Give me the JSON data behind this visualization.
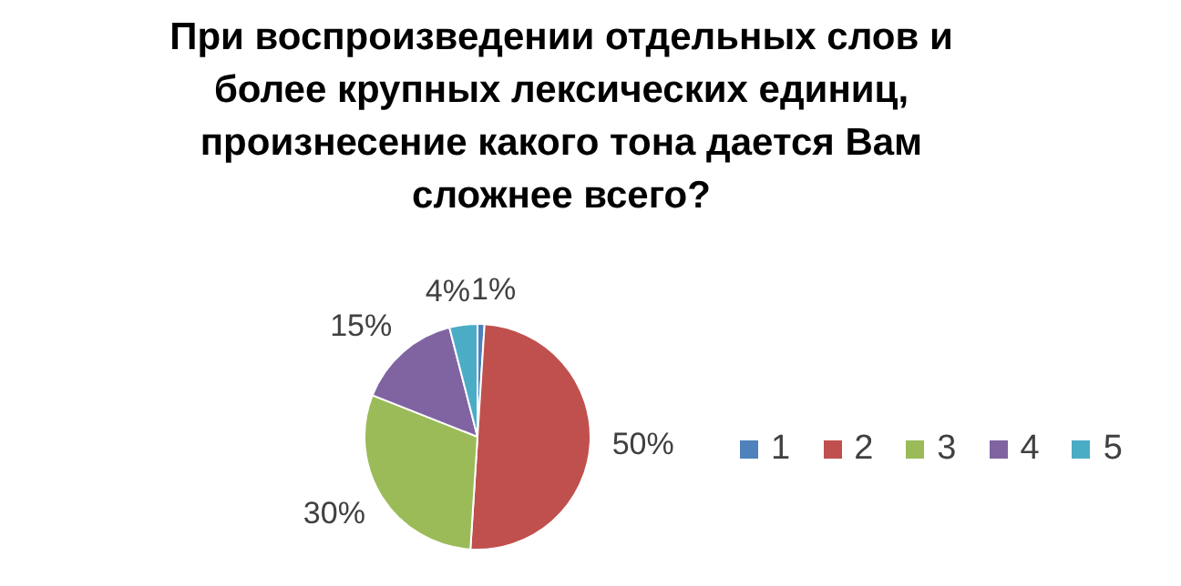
{
  "chart_data": {
    "type": "pie",
    "title": "При воспроизведении отдельных слов и более крупных лексических единиц, произнесение какого тона дается Вам сложнее всего?",
    "categories": [
      "1",
      "2",
      "3",
      "4",
      "5"
    ],
    "values": [
      1,
      50,
      30,
      15,
      4
    ],
    "value_labels": [
      "1%",
      "50%",
      "30%",
      "15%",
      "4%"
    ],
    "colors": [
      "#4f81bd",
      "#c0504d",
      "#9bbb59",
      "#8064a2",
      "#4bacc6"
    ],
    "legend": "right"
  }
}
